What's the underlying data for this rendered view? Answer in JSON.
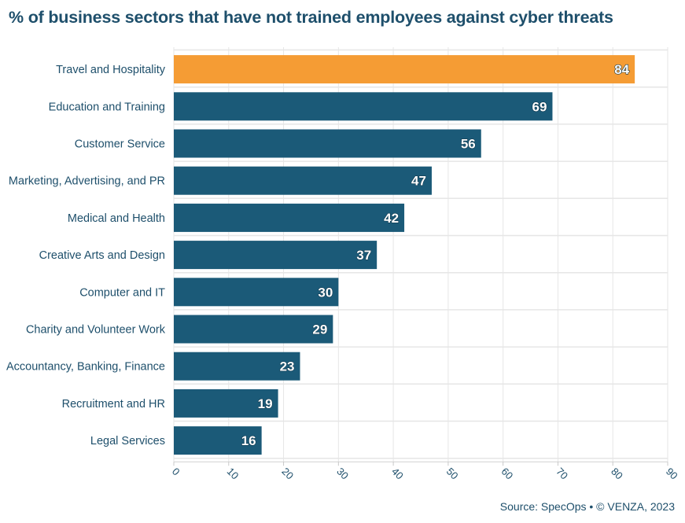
{
  "colors": {
    "highlight": "#f59c34",
    "bar": "#1b5a78",
    "text": "#1e4f6b",
    "grid": "#e6e6e6"
  },
  "chart_data": {
    "type": "bar",
    "orientation": "horizontal",
    "title": "% of business sectors that have not trained employees against cyber threats",
    "categories": [
      "Travel and Hospitality",
      "Education and Training",
      "Customer Service",
      "Marketing, Advertising, and PR",
      "Medical and Health",
      "Creative Arts and Design",
      "Computer and IT",
      "Charity and Volunteer Work",
      "Accountancy, Banking, Finance",
      "Recruitment and HR",
      "Legal Services"
    ],
    "values": [
      84,
      69,
      56,
      47,
      42,
      37,
      30,
      29,
      23,
      19,
      16
    ],
    "highlighted": [
      "Travel and Hospitality"
    ],
    "xlim": [
      0,
      90
    ],
    "xticks": [
      0,
      10,
      20,
      30,
      40,
      50,
      60,
      70,
      80,
      90
    ],
    "grid": true,
    "legend": "none",
    "source": "Source: SpecOps • © VENZA, 2023"
  }
}
